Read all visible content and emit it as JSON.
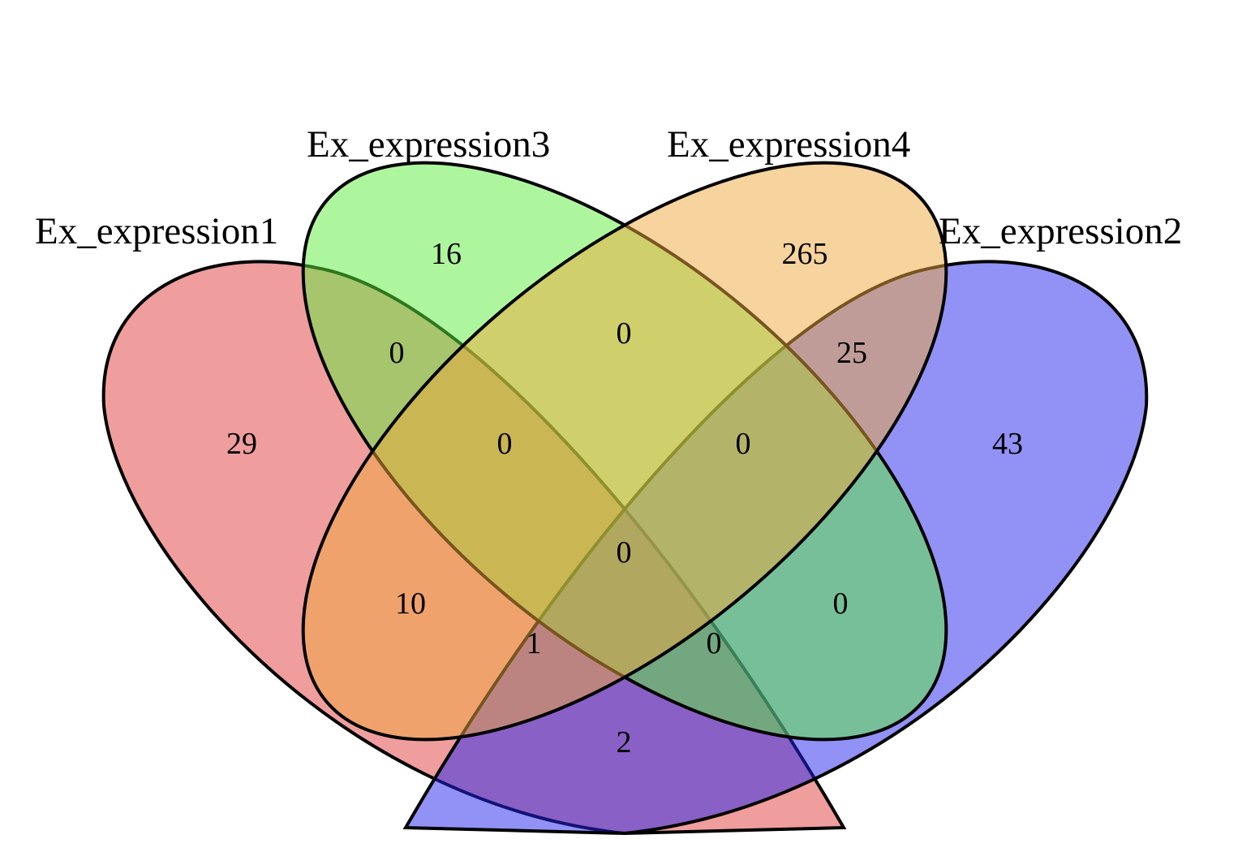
{
  "sets": [
    {
      "key": "s1",
      "label": "Ex_expression1",
      "color": "#E03C3C"
    },
    {
      "key": "s2",
      "label": "Ex_expression2",
      "color": "#2424EE"
    },
    {
      "key": "s3",
      "label": "Ex_expression3",
      "color": "#5EEE3C"
    },
    {
      "key": "s4",
      "label": "Ex_expression4",
      "color": "#F0A83C"
    }
  ],
  "regions": [
    {
      "sets": "1",
      "count": "29"
    },
    {
      "sets": "2",
      "count": "43"
    },
    {
      "sets": "3",
      "count": "16"
    },
    {
      "sets": "4",
      "count": "265"
    },
    {
      "sets": "1&3",
      "count": "0"
    },
    {
      "sets": "3&4",
      "count": "0"
    },
    {
      "sets": "2&4",
      "count": "25"
    },
    {
      "sets": "1&3&4",
      "count": "0"
    },
    {
      "sets": "2&3&4",
      "count": "0"
    },
    {
      "sets": "1&2&3&4",
      "count": "0"
    },
    {
      "sets": "1&4",
      "count": "10"
    },
    {
      "sets": "2&3",
      "count": "0"
    },
    {
      "sets": "1&2&4",
      "count": "1"
    },
    {
      "sets": "1&2&3",
      "count": "0"
    },
    {
      "sets": "1&2",
      "count": "2"
    }
  ]
}
